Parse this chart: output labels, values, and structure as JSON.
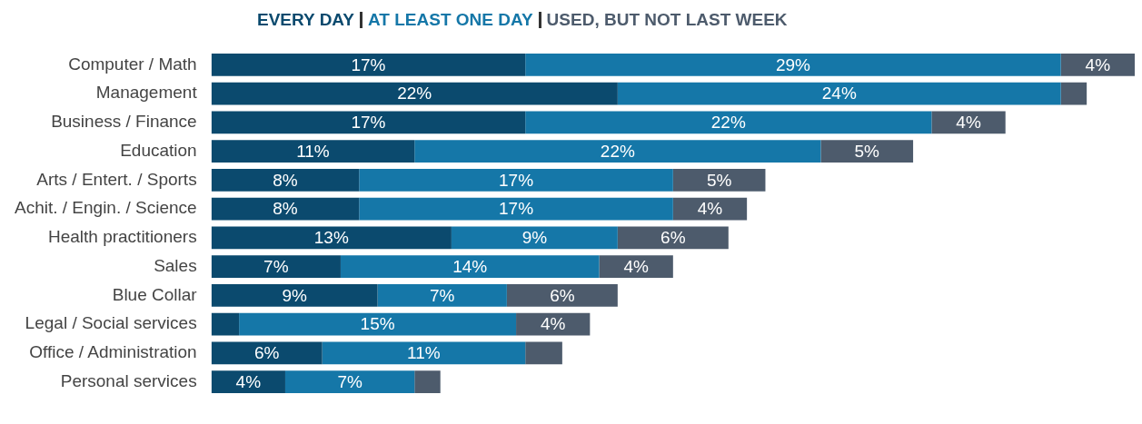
{
  "chart_data": {
    "type": "bar",
    "orientation": "horizontal",
    "stacked": true,
    "legend": "top",
    "tick_labels": "y",
    "xlim": [
      0,
      50
    ],
    "categories": [
      "Computer / Math",
      "Management",
      "Business / Finance",
      "Education",
      "Arts / Entert. / Sports",
      "Achit. / Engin. / Science",
      "Health practitioners",
      "Sales",
      "Blue Collar",
      "Legal / Social services",
      "Office / Administration",
      "Personal services"
    ],
    "series": [
      {
        "name": "EVERY DAY",
        "color": "#0b4a6e",
        "values": [
          17,
          22,
          17,
          11,
          8,
          8,
          13,
          7,
          9,
          1.5,
          6,
          4
        ],
        "value_labels": [
          "17%",
          "22%",
          "17%",
          "11%",
          "8%",
          "8%",
          "13%",
          "7%",
          "9%",
          null,
          "6%",
          "4%"
        ]
      },
      {
        "name": "AT LEAST ONE DAY",
        "color": "#1577a8",
        "values": [
          29,
          24,
          22,
          22,
          17,
          17,
          9,
          14,
          7,
          15,
          11,
          7
        ],
        "value_labels": [
          "29%",
          "24%",
          "22%",
          "22%",
          "17%",
          "17%",
          "9%",
          "14%",
          "7%",
          "15%",
          "11%",
          "7%"
        ]
      },
      {
        "name": "USED, BUT NOT LAST WEEK",
        "color": "#4d5b6c",
        "values": [
          4,
          1.4,
          4,
          5,
          5,
          4,
          6,
          4,
          6,
          4,
          2,
          1.4
        ],
        "value_labels": [
          "4%",
          null,
          "4%",
          "5%",
          "5%",
          "4%",
          "6%",
          "4%",
          "6%",
          "4%",
          null,
          null
        ]
      }
    ]
  }
}
